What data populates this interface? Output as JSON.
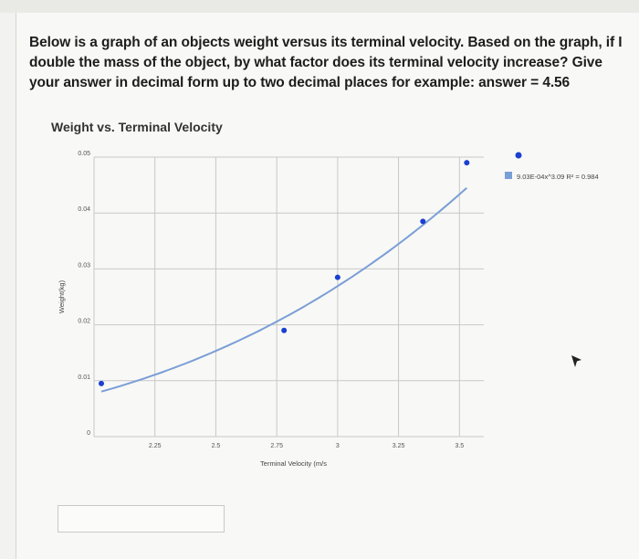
{
  "question": {
    "text": "Below is a graph of an objects weight versus its terminal velocity. Based on the graph, if I double the mass of the object, by what factor does its terminal velocity increase? Give your answer in decimal form up to two decimal places for example: answer =",
    "example_value": "4.56"
  },
  "answer_input": {
    "value": "",
    "placeholder": ""
  },
  "chart_data": {
    "type": "scatter",
    "title": "Weight vs. Terminal Velocity",
    "xlabel": "Terminal Velocity (m/s",
    "ylabel": "Weight(kg)",
    "xlim": [
      2.0,
      3.6
    ],
    "ylim": [
      0,
      0.05
    ],
    "x_ticks": [
      "2.25",
      "2.5",
      "2.75",
      "3",
      "3.25",
      "3.5"
    ],
    "y_ticks": [
      "0",
      "0.01",
      "0.02",
      "0.03",
      "0.04",
      "0.05"
    ],
    "grid": true,
    "legend_position": "right",
    "series": [
      {
        "values_x": [
          2.03,
          2.78,
          3.0,
          3.35,
          3.53
        ],
        "values_y": [
          0.0095,
          0.019,
          0.0285,
          0.0385,
          0.049
        ],
        "color": "#1a3fd1"
      }
    ],
    "trendline": {
      "label": "9.03E-04x^3.09 R² = 0.984",
      "coefficient": 0.000903,
      "exponent": 3.09,
      "color": "#7a9ed6"
    }
  },
  "colors": {
    "point": "#1a3fd1",
    "trend": "#7a9ed6",
    "grid": "#c8c8c8"
  }
}
